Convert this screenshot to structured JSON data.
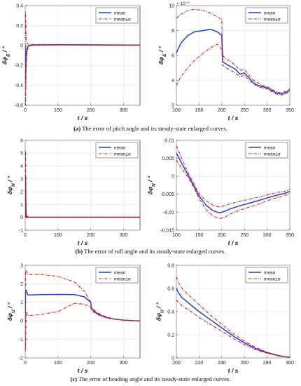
{
  "chart_data": [
    {
      "id": "a_full",
      "type": "line",
      "xlabel": "t / s",
      "ylabel": "δφ_E / °",
      "ylabel_base": "δφ",
      "ylabel_sub": "E",
      "ylabel_unit": " / °",
      "xlim": [
        0,
        350
      ],
      "ylim": [
        -0.6,
        0.4
      ],
      "xticks": [
        0,
        100,
        200,
        300
      ],
      "yticks": [
        -0.6,
        -0.4,
        -0.2,
        0,
        0.2,
        0.4
      ],
      "ytick_labels": [
        "-0.6",
        "-0.4",
        "-0.2",
        "0",
        "0.2",
        "0.4"
      ],
      "legend": "top-right",
      "series": [
        {
          "name": "mean",
          "style": "solid",
          "x": [
            0,
            1,
            2,
            3,
            5,
            8,
            12,
            20,
            40,
            100,
            200,
            350
          ],
          "y": [
            0,
            -0.35,
            -0.2,
            -0.08,
            -0.03,
            -0.01,
            0,
            0.005,
            0.006,
            0.007,
            0.006,
            0.004
          ]
        },
        {
          "name": "mean±σ",
          "style": "dashdot",
          "x": [
            0,
            1,
            2,
            3,
            5,
            8,
            12,
            20,
            40,
            100,
            200,
            350
          ],
          "y": [
            0,
            0.33,
            0.2,
            0.08,
            0.03,
            0.015,
            0.01,
            0.01,
            0.01,
            0.01,
            0.008,
            0.004
          ]
        },
        {
          "name": "",
          "style": "dashdot",
          "x": [
            0,
            1,
            2,
            3,
            5,
            8,
            12,
            20,
            40,
            100,
            200,
            350
          ],
          "y": [
            0,
            -0.6,
            -0.4,
            -0.2,
            -0.08,
            -0.03,
            -0.01,
            0,
            0.002,
            0.004,
            0.004,
            0.003
          ]
        }
      ]
    },
    {
      "id": "a_zoom",
      "type": "line",
      "xlabel": "t / s",
      "ylabel": "δφ_E / °",
      "ylabel_base": "δφ",
      "ylabel_sub": "E",
      "ylabel_unit": " / °",
      "exponent": "× 10⁻³",
      "xlim": [
        100,
        350
      ],
      "ylim": [
        2,
        10
      ],
      "xticks": [
        100,
        150,
        200,
        250,
        300,
        350
      ],
      "yticks": [
        2,
        4,
        6,
        8,
        10
      ],
      "ytick_labels": [
        "2",
        "4",
        "6",
        "8",
        "10"
      ],
      "legend": "top-right",
      "series": [
        {
          "name": "mean",
          "style": "solid",
          "x": [
            100,
            110,
            125,
            140,
            160,
            175,
            190,
            200,
            202,
            210,
            220,
            230,
            240,
            250,
            260,
            270,
            280,
            290,
            300,
            310,
            320,
            330,
            340,
            350
          ],
          "y": [
            6.2,
            7.0,
            7.6,
            7.9,
            8.0,
            8.1,
            7.9,
            7.6,
            5.5,
            5.3,
            5.1,
            4.9,
            4.5,
            4.6,
            4.2,
            3.8,
            3.6,
            3.5,
            3.4,
            3.2,
            3.0,
            2.9,
            3.0,
            3.2
          ]
        },
        {
          "name": "mean±σ",
          "style": "dashdot",
          "x": [
            100,
            110,
            125,
            140,
            160,
            175,
            190,
            200,
            202,
            210,
            220,
            230,
            240,
            250,
            260,
            270,
            280,
            290,
            300,
            310,
            320,
            330,
            340,
            350
          ],
          "y": [
            9.0,
            9.3,
            9.6,
            9.7,
            9.6,
            9.4,
            9.1,
            8.9,
            6.0,
            5.7,
            5.5,
            5.2,
            4.8,
            4.9,
            4.4,
            4.0,
            3.8,
            3.6,
            3.5,
            3.3,
            3.1,
            3.0,
            3.1,
            3.3
          ]
        },
        {
          "name": "",
          "style": "dashdot",
          "x": [
            100,
            110,
            125,
            140,
            160,
            175,
            190,
            200,
            202,
            210,
            220,
            230,
            240,
            250,
            260,
            270,
            280,
            290,
            300,
            310,
            320,
            330,
            340,
            350
          ],
          "y": [
            3.6,
            4.3,
            5.0,
            5.6,
            6.2,
            6.6,
            6.9,
            6.5,
            5.2,
            5.0,
            4.8,
            4.6,
            4.3,
            4.4,
            4.0,
            3.7,
            3.5,
            3.4,
            3.3,
            3.1,
            2.9,
            2.8,
            2.9,
            3.1
          ]
        }
      ]
    },
    {
      "id": "b_full",
      "type": "line",
      "xlabel": "t / s",
      "ylabel": "δφ_N / °",
      "ylabel_base": "δφ",
      "ylabel_sub": "N",
      "ylabel_unit": " / °",
      "xlim": [
        0,
        350
      ],
      "ylim": [
        -1,
        6
      ],
      "xticks": [
        0,
        100,
        200,
        300
      ],
      "yticks": [
        -1,
        0,
        1,
        2,
        3,
        4,
        5,
        6
      ],
      "ytick_labels": [
        "-1",
        "0",
        "1",
        "2",
        "3",
        "4",
        "5",
        "6"
      ],
      "legend": "top-right",
      "series": [
        {
          "name": "mean",
          "style": "solid",
          "x": [
            0,
            1,
            2,
            3,
            5,
            10,
            350
          ],
          "y": [
            0,
            3.2,
            1.0,
            0.2,
            0.05,
            0.01,
            0.01
          ]
        },
        {
          "name": "mean±σ",
          "style": "dashdot",
          "x": [
            0,
            1,
            2,
            3,
            5,
            10,
            350
          ],
          "y": [
            0,
            5.2,
            1.6,
            0.4,
            0.1,
            0.02,
            0.02
          ]
        },
        {
          "name": "",
          "style": "dashdot",
          "x": [
            0,
            1,
            2,
            3,
            5,
            10,
            350
          ],
          "y": [
            0,
            1.2,
            0.3,
            -0.05,
            -0.02,
            0,
            0
          ]
        }
      ]
    },
    {
      "id": "b_zoom",
      "type": "line",
      "xlabel": "t / s",
      "ylabel": "δφ_N / °",
      "ylabel_base": "δφ",
      "ylabel_sub": "N",
      "ylabel_unit": " / °",
      "xlim": [
        100,
        350
      ],
      "ylim": [
        -0.015,
        0.01
      ],
      "xticks": [
        100,
        150,
        200,
        250,
        300,
        350
      ],
      "yticks": [
        -0.015,
        -0.01,
        -0.005,
        0,
        0.005,
        0.01
      ],
      "ytick_labels": [
        "-0.015",
        "-0.01",
        "-0.005",
        "0",
        "0.005",
        "0.01"
      ],
      "legend": "top-right",
      "series": [
        {
          "name": "mean",
          "style": "solid",
          "x": [
            100,
            110,
            125,
            140,
            150,
            165,
            180,
            195,
            205,
            220,
            240,
            260,
            280,
            300,
            320,
            340,
            350
          ],
          "y": [
            0.0065,
            0.004,
            0.0005,
            -0.003,
            -0.0055,
            -0.008,
            -0.0095,
            -0.0102,
            -0.0098,
            -0.009,
            -0.0082,
            -0.0075,
            -0.0068,
            -0.006,
            -0.0053,
            -0.0047,
            -0.0042
          ]
        },
        {
          "name": "mean±σ",
          "style": "dashdot",
          "x": [
            100,
            110,
            125,
            140,
            150,
            165,
            180,
            195,
            205,
            220,
            240,
            260,
            280,
            300,
            320,
            340,
            350
          ],
          "y": [
            0.0085,
            0.0055,
            0.0012,
            -0.0025,
            -0.0048,
            -0.0068,
            -0.008,
            -0.0086,
            -0.0082,
            -0.0076,
            -0.007,
            -0.0064,
            -0.0058,
            -0.0052,
            -0.0046,
            -0.0041,
            -0.0037
          ]
        },
        {
          "name": "",
          "style": "dashdot",
          "x": [
            100,
            110,
            125,
            140,
            150,
            165,
            180,
            195,
            205,
            220,
            240,
            260,
            280,
            300,
            320,
            340,
            350
          ],
          "y": [
            0.0045,
            0.0025,
            -0.0002,
            -0.0035,
            -0.0062,
            -0.0092,
            -0.011,
            -0.0118,
            -0.0115,
            -0.0104,
            -0.0094,
            -0.0086,
            -0.0078,
            -0.0068,
            -0.006,
            -0.0053,
            -0.0047
          ]
        }
      ]
    },
    {
      "id": "c_full",
      "type": "line",
      "xlabel": "t / s",
      "ylabel": "δφ_U / °",
      "ylabel_base": "δφ",
      "ylabel_sub": "U",
      "ylabel_unit": " / °",
      "xlim": [
        0,
        350
      ],
      "ylim": [
        -2,
        3
      ],
      "xticks": [
        0,
        100,
        200,
        300
      ],
      "yticks": [
        -2,
        -1,
        0,
        1,
        2,
        3
      ],
      "ytick_labels": [
        "-2",
        "-1",
        "0",
        "1",
        "2",
        "3"
      ],
      "legend": "top-right",
      "series": [
        {
          "name": "mean",
          "style": "solid",
          "x": [
            0,
            1,
            3,
            8,
            20,
            50,
            100,
            150,
            180,
            200,
            202,
            215,
            230,
            250,
            270,
            300,
            330,
            350
          ],
          "y": [
            0,
            1.6,
            1.65,
            1.4,
            1.4,
            1.42,
            1.43,
            1.42,
            1.3,
            1.0,
            0.65,
            0.45,
            0.3,
            0.18,
            0.1,
            0.04,
            0.01,
            0.0
          ]
        },
        {
          "name": "mean±σ",
          "style": "dashdot",
          "x": [
            0,
            1,
            3,
            8,
            20,
            50,
            100,
            150,
            180,
            200,
            202,
            215,
            230,
            250,
            270,
            300,
            330,
            350
          ],
          "y": [
            0,
            2.6,
            2.75,
            2.5,
            2.5,
            2.5,
            2.4,
            2.1,
            1.6,
            1.0,
            0.75,
            0.5,
            0.34,
            0.2,
            0.11,
            0.045,
            0.012,
            0.0
          ]
        },
        {
          "name": "",
          "style": "dashdot",
          "x": [
            0,
            1,
            3,
            8,
            20,
            50,
            100,
            150,
            180,
            200,
            202,
            215,
            230,
            250,
            270,
            300,
            330,
            350
          ],
          "y": [
            0,
            -1.6,
            0.5,
            0.3,
            0.3,
            0.35,
            0.5,
            0.95,
            0.9,
            0.75,
            0.55,
            0.4,
            0.26,
            0.15,
            0.09,
            0.035,
            0.008,
            0.0
          ]
        }
      ]
    },
    {
      "id": "c_zoom",
      "type": "line",
      "xlabel": "t / s",
      "ylabel": "δφ_U / °",
      "ylabel_base": "δφ",
      "ylabel_sub": "U",
      "ylabel_unit": " / °",
      "xlim": [
        200,
        300
      ],
      "ylim": [
        0,
        0.8
      ],
      "xticks": [
        200,
        220,
        240,
        260,
        280,
        300
      ],
      "yticks": [
        0,
        0.2,
        0.4,
        0.6,
        0.8
      ],
      "ytick_labels": [
        "0",
        "0.2",
        "0.4",
        "0.6",
        "0.8"
      ],
      "legend": "top-right",
      "series": [
        {
          "name": "mean",
          "style": "solid",
          "x": [
            200,
            202,
            205,
            210,
            220,
            230,
            240,
            250,
            260,
            270,
            280,
            290,
            300
          ],
          "y": [
            0.6,
            0.56,
            0.52,
            0.48,
            0.4,
            0.33,
            0.26,
            0.19,
            0.13,
            0.08,
            0.045,
            0.02,
            0.005
          ]
        },
        {
          "name": "mean±σ",
          "style": "dashdot",
          "x": [
            200,
            202,
            205,
            210,
            220,
            230,
            240,
            250,
            260,
            270,
            280,
            290,
            300
          ],
          "y": [
            0.7,
            0.65,
            0.6,
            0.55,
            0.46,
            0.37,
            0.29,
            0.21,
            0.145,
            0.09,
            0.05,
            0.022,
            0.005
          ]
        },
        {
          "name": "",
          "style": "dashdot",
          "x": [
            200,
            202,
            205,
            210,
            220,
            230,
            240,
            250,
            260,
            270,
            280,
            290,
            300
          ],
          "y": [
            0.5,
            0.48,
            0.45,
            0.42,
            0.35,
            0.29,
            0.23,
            0.17,
            0.115,
            0.07,
            0.04,
            0.018,
            0.005
          ]
        }
      ]
    }
  ],
  "captions": {
    "a_tag": "(a)",
    "a_text": " The error of pitch angle and its steady-state enlarged curves.",
    "b_tag": "(b)",
    "b_text": " The error of roll angle and its steady-state enlarged curves.",
    "c_tag": "(c)",
    "c_text": " The error of heading angle and its steady-state enlarged curves."
  },
  "colors": {
    "mean": "#1f3fd6",
    "band": "#d01818",
    "axis": "#444444"
  }
}
